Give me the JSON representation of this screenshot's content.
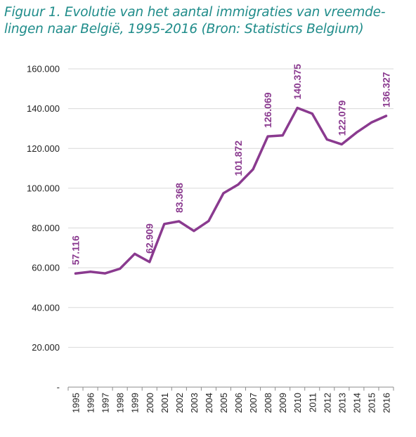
{
  "caption": {
    "line1": "Figuur 1. Evolutie van het aantal immigraties van vreemde-",
    "line2": "lingen naar België, 1995-2016 (Bron: Statistics Belgium)"
  },
  "colors": {
    "caption": "#1f8c8a",
    "line": "#8a3a8f",
    "grid": "#d9d9d9",
    "axis": "#8c8c8c"
  },
  "chart_data": {
    "type": "line",
    "title": "",
    "xlabel": "",
    "ylabel": "",
    "ylim": [
      0,
      160000
    ],
    "grid": true,
    "categories": [
      "1995",
      "1996",
      "1997",
      "1998",
      "1999",
      "2000",
      "2001",
      "2002",
      "2003",
      "2004",
      "2005",
      "2006",
      "2007",
      "2008",
      "2009",
      "2010",
      "2011",
      "2012",
      "2013",
      "2014",
      "2015",
      "2016"
    ],
    "series": [
      {
        "values": [
          57116,
          58000,
          57200,
          59500,
          67000,
          62909,
          82000,
          83368,
          78500,
          83500,
          97500,
          101872,
          109500,
          126069,
          126500,
          140375,
          137500,
          124500,
          122079,
          128000,
          133000,
          136327
        ]
      }
    ],
    "y_ticks": [
      "-",
      "20.000",
      "40.000",
      "60.000",
      "80.000",
      "100.000",
      "120.000",
      "140.000",
      "160.000"
    ],
    "y_tick_values": [
      0,
      20000,
      40000,
      60000,
      80000,
      100000,
      120000,
      140000,
      160000
    ],
    "data_labels": [
      {
        "index": 0,
        "text": "57.116"
      },
      {
        "index": 5,
        "text": "62.909"
      },
      {
        "index": 7,
        "text": "83.368"
      },
      {
        "index": 11,
        "text": "101.872"
      },
      {
        "index": 13,
        "text": "126.069"
      },
      {
        "index": 15,
        "text": "140.375"
      },
      {
        "index": 18,
        "text": "122.079"
      },
      {
        "index": 21,
        "text": "136.327"
      }
    ]
  }
}
